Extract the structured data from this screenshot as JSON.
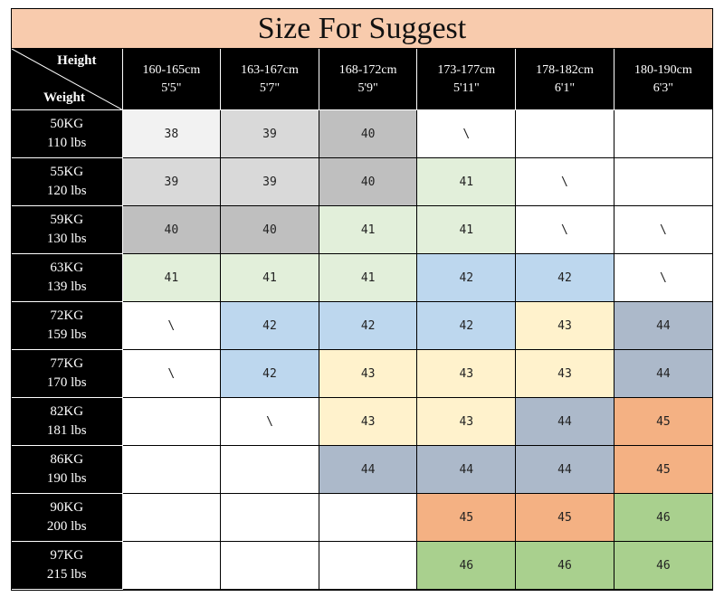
{
  "title": "Size For Suggest",
  "corner": {
    "height_label": "Height",
    "weight_label": "Weight"
  },
  "columns": [
    {
      "cm": "160-165cm",
      "ft": "5'5\""
    },
    {
      "cm": "163-167cm",
      "ft": "5'7\""
    },
    {
      "cm": "168-172cm",
      "ft": "5'9\""
    },
    {
      "cm": "173-177cm",
      "ft": "5'11\""
    },
    {
      "cm": "178-182cm",
      "ft": "6'1\""
    },
    {
      "cm": "180-190cm",
      "ft": "6'3\""
    }
  ],
  "rows": [
    {
      "kg": "50KG",
      "lbs": "110 lbs",
      "sizes": [
        "38",
        "39",
        "40",
        "\\",
        "",
        ""
      ]
    },
    {
      "kg": "55KG",
      "lbs": "120 lbs",
      "sizes": [
        "39",
        "39",
        "40",
        "41",
        "\\",
        ""
      ]
    },
    {
      "kg": "59KG",
      "lbs": "130 lbs",
      "sizes": [
        "40",
        "40",
        "41",
        "41",
        "\\",
        "\\"
      ]
    },
    {
      "kg": "63KG",
      "lbs": "139 lbs",
      "sizes": [
        "41",
        "41",
        "41",
        "42",
        "42",
        "\\"
      ]
    },
    {
      "kg": "72KG",
      "lbs": "159 lbs",
      "sizes": [
        "\\",
        "42",
        "42",
        "42",
        "43",
        "44"
      ]
    },
    {
      "kg": "77KG",
      "lbs": "170 lbs",
      "sizes": [
        "\\",
        "42",
        "43",
        "43",
        "43",
        "44"
      ]
    },
    {
      "kg": "82KG",
      "lbs": "181 lbs",
      "sizes": [
        "",
        "\\",
        "43",
        "43",
        "44",
        "45"
      ]
    },
    {
      "kg": "86KG",
      "lbs": "190 lbs",
      "sizes": [
        "",
        "",
        "44",
        "44",
        "44",
        "45"
      ]
    },
    {
      "kg": "90KG",
      "lbs": "200 lbs",
      "sizes": [
        "",
        "",
        "",
        "45",
        "45",
        "46"
      ]
    },
    {
      "kg": "97KG",
      "lbs": "215 lbs",
      "sizes": [
        "",
        "",
        "",
        "46",
        "46",
        "46"
      ]
    }
  ],
  "size_colors": {
    "38": "#f2f2f2",
    "39": "#d9d9d9",
    "40": "#bfbfbf",
    "41": "#e2efda",
    "42": "#bdd7ee",
    "43": "#fff2cc",
    "44": "#acb9ca",
    "45": "#f4b183",
    "46": "#a9d08e"
  },
  "colors": {
    "title_bg": "#f8cbad",
    "header_bg": "#000000",
    "empty_cell": "#ffffff"
  }
}
